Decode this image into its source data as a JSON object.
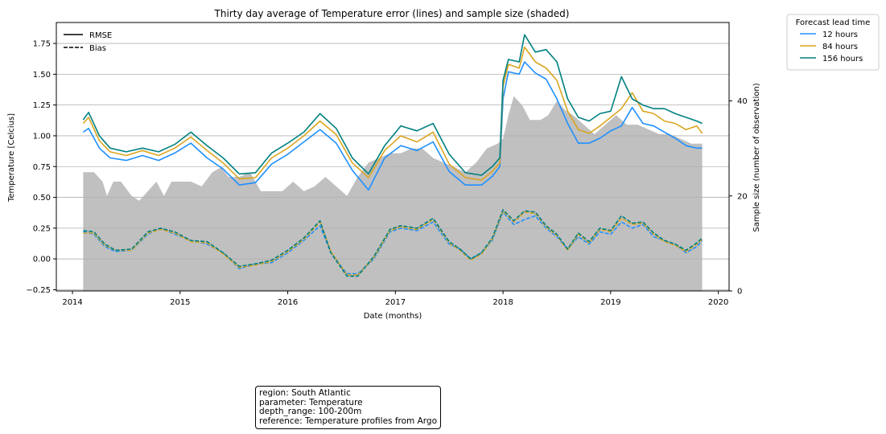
{
  "chart_data": {
    "type": "line",
    "title": "Thirty day average of Temperature error (lines) and sample size (shaded)",
    "xlabel": "Date (months)",
    "ylabel": "Temperature [Celcius]",
    "y2label": "Sample size (number of observation)",
    "xlim": [
      2013.85,
      2020.1
    ],
    "ylim": [
      -0.26,
      1.92
    ],
    "y2lim": [
      0,
      56.5
    ],
    "x_ticks": [
      "2014",
      "2015",
      "2016",
      "2017",
      "2018",
      "2019",
      "2020"
    ],
    "y_ticks": [
      "−0.25",
      "0.00",
      "0.25",
      "0.50",
      "0.75",
      "1.00",
      "1.25",
      "1.50",
      "1.75"
    ],
    "y2_ticks": [
      "0",
      "20",
      "40"
    ],
    "grid": "horizontal",
    "style_legend": [
      {
        "label": "RMSE",
        "dash": "solid"
      },
      {
        "label": "Bias",
        "dash": "dashed"
      }
    ],
    "legend_title": "Forecast lead time",
    "legend_placement": "outside top-right",
    "series": [
      {
        "name": "12 hours",
        "color": "#1e90ff"
      },
      {
        "name": "84 hours",
        "color": "#daa520"
      },
      {
        "name": "156 hours",
        "color": "#008080"
      }
    ],
    "shade_color": "#c0c0c0",
    "sample_size": {
      "x": [
        2014.1,
        2014.2,
        2014.28,
        2014.32,
        2014.38,
        2014.45,
        2014.55,
        2014.62,
        2014.7,
        2014.78,
        2014.85,
        2014.92,
        2015.0,
        2015.1,
        2015.2,
        2015.3,
        2015.38,
        2015.45,
        2015.55,
        2015.65,
        2015.75,
        2015.85,
        2015.95,
        2016.05,
        2016.15,
        2016.25,
        2016.35,
        2016.45,
        2016.55,
        2016.65,
        2016.75,
        2016.85,
        2016.95,
        2017.05,
        2017.15,
        2017.25,
        2017.35,
        2017.45,
        2017.55,
        2017.65,
        2017.75,
        2017.85,
        2017.95,
        2018.0,
        2018.05,
        2018.1,
        2018.18,
        2018.25,
        2018.35,
        2018.42,
        2018.5,
        2018.58,
        2018.65,
        2018.75,
        2018.85,
        2018.95,
        2019.05,
        2019.15,
        2019.25,
        2019.35,
        2019.45,
        2019.55,
        2019.65,
        2019.75,
        2019.85
      ],
      "y": [
        25,
        25,
        23,
        20,
        23,
        23,
        20,
        19,
        21,
        23,
        20,
        23,
        23,
        23,
        22,
        25,
        26,
        24,
        24,
        25,
        21,
        21,
        21,
        23,
        21,
        22,
        24,
        22,
        20,
        24,
        27,
        28,
        29,
        29,
        30,
        30,
        28,
        27,
        26,
        25,
        27,
        30,
        31,
        32,
        37,
        41,
        39,
        36,
        36,
        37,
        40,
        38,
        37,
        35,
        33,
        35,
        37,
        35,
        35,
        34,
        33,
        33,
        32,
        31,
        31
      ]
    },
    "rmse": [
      {
        "name": "12 hours",
        "x": [
          2014.1,
          2014.15,
          2014.25,
          2014.35,
          2014.5,
          2014.65,
          2014.8,
          2014.95,
          2015.1,
          2015.25,
          2015.4,
          2015.55,
          2015.7,
          2015.85,
          2016.0,
          2016.15,
          2016.3,
          2016.45,
          2016.6,
          2016.75,
          2016.9,
          2017.05,
          2017.2,
          2017.35,
          2017.5,
          2017.65,
          2017.8,
          2017.9,
          2017.97,
          2018.0,
          2018.05,
          2018.15,
          2018.2,
          2018.3,
          2018.4,
          2018.5,
          2018.6,
          2018.7,
          2018.8,
          2018.9,
          2019.0,
          2019.1,
          2019.2,
          2019.3,
          2019.4,
          2019.5,
          2019.6,
          2019.7,
          2019.8,
          2019.85
        ],
        "y": [
          1.03,
          1.06,
          0.9,
          0.82,
          0.8,
          0.84,
          0.8,
          0.86,
          0.94,
          0.82,
          0.73,
          0.6,
          0.62,
          0.77,
          0.85,
          0.95,
          1.05,
          0.94,
          0.72,
          0.56,
          0.82,
          0.92,
          0.88,
          0.95,
          0.71,
          0.6,
          0.6,
          0.67,
          0.75,
          1.3,
          1.52,
          1.5,
          1.6,
          1.51,
          1.46,
          1.3,
          1.1,
          0.94,
          0.94,
          0.98,
          1.04,
          1.08,
          1.23,
          1.1,
          1.08,
          1.03,
          0.98,
          0.92,
          0.9,
          0.9
        ]
      },
      {
        "name": "84 hours",
        "x": [
          2014.1,
          2014.15,
          2014.25,
          2014.35,
          2014.5,
          2014.65,
          2014.8,
          2014.95,
          2015.1,
          2015.25,
          2015.4,
          2015.55,
          2015.7,
          2015.85,
          2016.0,
          2016.15,
          2016.3,
          2016.45,
          2016.6,
          2016.75,
          2016.9,
          2017.05,
          2017.2,
          2017.35,
          2017.5,
          2017.65,
          2017.8,
          2017.9,
          2017.97,
          2018.0,
          2018.05,
          2018.15,
          2018.2,
          2018.3,
          2018.4,
          2018.5,
          2018.6,
          2018.7,
          2018.8,
          2018.9,
          2019.0,
          2019.1,
          2019.2,
          2019.3,
          2019.4,
          2019.5,
          2019.6,
          2019.7,
          2019.8,
          2019.85
        ],
        "y": [
          1.1,
          1.15,
          0.96,
          0.87,
          0.84,
          0.88,
          0.84,
          0.9,
          0.99,
          0.88,
          0.78,
          0.65,
          0.66,
          0.82,
          0.9,
          1.0,
          1.12,
          1.01,
          0.78,
          0.66,
          0.88,
          1.0,
          0.95,
          1.03,
          0.77,
          0.66,
          0.64,
          0.71,
          0.78,
          1.4,
          1.58,
          1.55,
          1.72,
          1.6,
          1.55,
          1.45,
          1.2,
          1.05,
          1.02,
          1.08,
          1.15,
          1.22,
          1.35,
          1.2,
          1.18,
          1.12,
          1.1,
          1.05,
          1.08,
          1.02
        ]
      },
      {
        "name": "156 hours",
        "x": [
          2014.1,
          2014.15,
          2014.25,
          2014.35,
          2014.5,
          2014.65,
          2014.8,
          2014.95,
          2015.1,
          2015.25,
          2015.4,
          2015.55,
          2015.7,
          2015.85,
          2016.0,
          2016.15,
          2016.3,
          2016.45,
          2016.6,
          2016.75,
          2016.9,
          2017.05,
          2017.2,
          2017.35,
          2017.5,
          2017.65,
          2017.8,
          2017.9,
          2017.97,
          2018.0,
          2018.05,
          2018.15,
          2018.2,
          2018.3,
          2018.4,
          2018.5,
          2018.6,
          2018.7,
          2018.8,
          2018.9,
          2019.0,
          2019.1,
          2019.2,
          2019.3,
          2019.4,
          2019.5,
          2019.6,
          2019.7,
          2019.8,
          2019.85
        ],
        "y": [
          1.13,
          1.19,
          1.0,
          0.9,
          0.87,
          0.9,
          0.87,
          0.93,
          1.03,
          0.92,
          0.82,
          0.69,
          0.7,
          0.86,
          0.94,
          1.03,
          1.18,
          1.06,
          0.82,
          0.69,
          0.92,
          1.08,
          1.04,
          1.1,
          0.85,
          0.7,
          0.68,
          0.75,
          0.82,
          1.45,
          1.62,
          1.6,
          1.82,
          1.68,
          1.7,
          1.6,
          1.3,
          1.15,
          1.12,
          1.18,
          1.2,
          1.48,
          1.3,
          1.25,
          1.22,
          1.22,
          1.18,
          1.15,
          1.12,
          1.1
        ]
      }
    ],
    "bias": [
      {
        "name": "12 hours",
        "x": [
          2014.1,
          2014.2,
          2014.3,
          2014.4,
          2014.55,
          2014.7,
          2014.82,
          2014.95,
          2015.1,
          2015.25,
          2015.4,
          2015.55,
          2015.7,
          2015.85,
          2016.0,
          2016.15,
          2016.3,
          2016.4,
          2016.55,
          2016.65,
          2016.8,
          2016.95,
          2017.05,
          2017.2,
          2017.35,
          2017.5,
          2017.6,
          2017.7,
          2017.8,
          2017.9,
          2018.0,
          2018.1,
          2018.2,
          2018.3,
          2018.4,
          2018.5,
          2018.6,
          2018.7,
          2018.8,
          2018.9,
          2019.0,
          2019.1,
          2019.2,
          2019.3,
          2019.4,
          2019.5,
          2019.6,
          2019.7,
          2019.8,
          2019.85
        ],
        "y": [
          0.22,
          0.2,
          0.1,
          0.06,
          0.07,
          0.2,
          0.25,
          0.2,
          0.15,
          0.12,
          0.05,
          -0.08,
          -0.04,
          -0.03,
          0.05,
          0.15,
          0.27,
          0.05,
          -0.12,
          -0.12,
          0.0,
          0.22,
          0.25,
          0.23,
          0.3,
          0.12,
          0.08,
          0.0,
          0.05,
          0.15,
          0.38,
          0.28,
          0.32,
          0.35,
          0.25,
          0.18,
          0.08,
          0.18,
          0.12,
          0.22,
          0.2,
          0.3,
          0.25,
          0.28,
          0.18,
          0.15,
          0.12,
          0.05,
          0.1,
          0.15
        ]
      },
      {
        "name": "84 hours",
        "x": [
          2014.1,
          2014.2,
          2014.3,
          2014.4,
          2014.55,
          2014.7,
          2014.82,
          2014.95,
          2015.1,
          2015.25,
          2015.4,
          2015.55,
          2015.7,
          2015.85,
          2016.0,
          2016.15,
          2016.3,
          2016.4,
          2016.55,
          2016.65,
          2016.8,
          2016.95,
          2017.05,
          2017.2,
          2017.35,
          2017.5,
          2017.6,
          2017.7,
          2017.8,
          2017.9,
          2018.0,
          2018.1,
          2018.2,
          2018.3,
          2018.4,
          2018.5,
          2018.6,
          2018.7,
          2018.8,
          2018.9,
          2019.0,
          2019.1,
          2019.2,
          2019.3,
          2019.4,
          2019.5,
          2019.6,
          2019.7,
          2019.8,
          2019.85
        ],
        "y": [
          0.21,
          0.21,
          0.11,
          0.07,
          0.07,
          0.21,
          0.24,
          0.21,
          0.14,
          0.13,
          0.04,
          -0.07,
          -0.05,
          -0.02,
          0.06,
          0.16,
          0.3,
          0.06,
          -0.13,
          -0.13,
          0.01,
          0.23,
          0.26,
          0.24,
          0.32,
          0.13,
          0.07,
          -0.01,
          0.04,
          0.16,
          0.39,
          0.3,
          0.38,
          0.37,
          0.26,
          0.19,
          0.07,
          0.2,
          0.13,
          0.24,
          0.22,
          0.33,
          0.28,
          0.29,
          0.2,
          0.14,
          0.11,
          0.06,
          0.12,
          0.16
        ]
      },
      {
        "name": "156 hours",
        "x": [
          2014.1,
          2014.2,
          2014.3,
          2014.4,
          2014.55,
          2014.7,
          2014.82,
          2014.95,
          2015.1,
          2015.25,
          2015.4,
          2015.55,
          2015.7,
          2015.85,
          2016.0,
          2016.15,
          2016.3,
          2016.4,
          2016.55,
          2016.65,
          2016.8,
          2016.95,
          2017.05,
          2017.2,
          2017.35,
          2017.5,
          2017.6,
          2017.7,
          2017.8,
          2017.9,
          2018.0,
          2018.1,
          2018.2,
          2018.3,
          2018.4,
          2018.5,
          2018.6,
          2018.7,
          2018.8,
          2018.9,
          2019.0,
          2019.1,
          2019.2,
          2019.3,
          2019.4,
          2019.5,
          2019.6,
          2019.7,
          2019.8,
          2019.85
        ],
        "y": [
          0.23,
          0.22,
          0.12,
          0.07,
          0.08,
          0.22,
          0.25,
          0.22,
          0.15,
          0.14,
          0.05,
          -0.06,
          -0.04,
          -0.01,
          0.07,
          0.17,
          0.31,
          0.05,
          -0.14,
          -0.14,
          0.02,
          0.24,
          0.27,
          0.25,
          0.33,
          0.14,
          0.08,
          0.0,
          0.05,
          0.17,
          0.4,
          0.31,
          0.39,
          0.38,
          0.27,
          0.2,
          0.08,
          0.21,
          0.14,
          0.25,
          0.23,
          0.35,
          0.29,
          0.3,
          0.21,
          0.15,
          0.12,
          0.07,
          0.13,
          0.17
        ]
      }
    ]
  },
  "info_box": {
    "region": "region: South Atlantic",
    "parameter": "parameter: Temperature",
    "depth_range": "depth_range: 100-200m",
    "reference": "reference: Temperature profiles from Argo"
  }
}
